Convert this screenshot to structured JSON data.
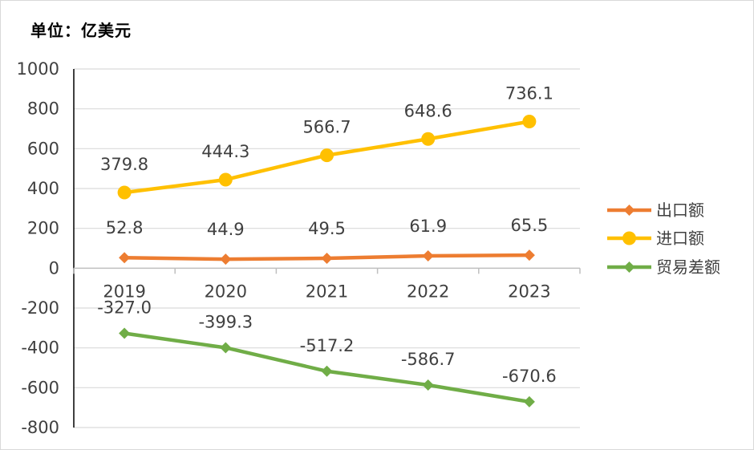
{
  "unit_label": "单位：亿美元",
  "chart_data": {
    "type": "line",
    "title": "",
    "xlabel": "",
    "ylabel": "",
    "categories": [
      "2019",
      "2020",
      "2021",
      "2022",
      "2023"
    ],
    "ylim": [
      -800,
      1000
    ],
    "yticks": [
      1000,
      800,
      600,
      400,
      200,
      0,
      -200,
      -400,
      -600,
      -800
    ],
    "grid": true,
    "legend_position": "right",
    "series": [
      {
        "name": "出口额",
        "values": [
          52.8,
          44.9,
          49.5,
          61.9,
          65.5
        ],
        "labels": [
          "52.8",
          "44.9",
          "49.5",
          "61.9",
          "65.5"
        ],
        "color": "#ED7D31",
        "marker": "diamond"
      },
      {
        "name": "进口额",
        "values": [
          379.8,
          444.3,
          566.7,
          648.6,
          736.1
        ],
        "labels": [
          "379.8",
          "444.3",
          "566.7",
          "648.6",
          "736.1"
        ],
        "color": "#FFC000",
        "marker": "circle"
      },
      {
        "name": "贸易差额",
        "values": [
          -327.0,
          -399.3,
          -517.2,
          -586.7,
          -670.6
        ],
        "labels": [
          "-327.0",
          "-399.3",
          "-517.2",
          "-586.7",
          "-670.6"
        ],
        "color": "#70AD47",
        "marker": "diamond"
      }
    ]
  }
}
